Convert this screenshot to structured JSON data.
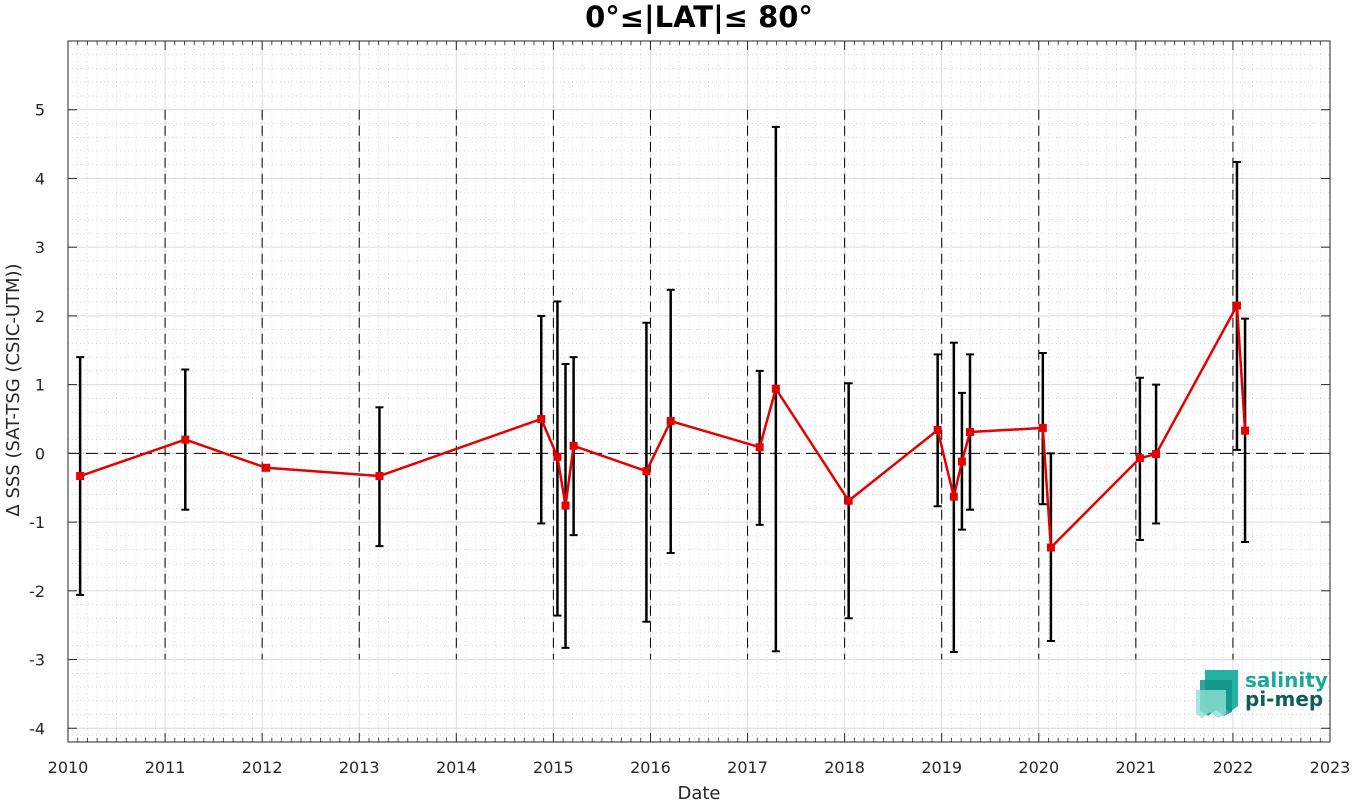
{
  "chart_data": {
    "type": "line",
    "title": "0°≤|LAT|≤ 80°",
    "xlabel": "Date",
    "ylabel": "Δ SSS (SAT-TSG (CSIC-UTM))",
    "xlim": [
      2010,
      2023
    ],
    "ylim": [
      -4.2,
      6
    ],
    "x_ticks": [
      "2010",
      "2011",
      "2012",
      "2013",
      "2014",
      "2015",
      "2016",
      "2017",
      "2018",
      "2019",
      "2020",
      "2021",
      "2022",
      "2023"
    ],
    "y_ticks": [
      "5",
      "4",
      "3",
      "2",
      "1",
      "0",
      "-1",
      "-2",
      "-3",
      "-4"
    ],
    "grid": "on (major and minor dotted)",
    "year_separators": [
      2011,
      2012,
      2013,
      2014,
      2015,
      2016,
      2017,
      2018,
      2019,
      2020,
      2021,
      2022
    ],
    "zero_line": 0,
    "series": [
      {
        "color": "#e60000",
        "marker": "square",
        "points": [
          {
            "date": "2010-02",
            "value": -0.33,
            "low": -2.06,
            "high": 1.4
          },
          {
            "date": "2011-03",
            "value": 0.2,
            "low": -0.82,
            "high": 1.22
          },
          {
            "date": "2012-01",
            "value": -0.21,
            "low": null,
            "high": null
          },
          {
            "date": "2013-03",
            "value": -0.33,
            "low": -1.35,
            "high": 0.67
          },
          {
            "date": "2014-11",
            "value": 0.5,
            "low": -1.02,
            "high": 2.0
          },
          {
            "date": "2015-01",
            "value": -0.05,
            "low": -2.36,
            "high": 2.21
          },
          {
            "date": "2015-02",
            "value": -0.76,
            "low": -2.83,
            "high": 1.3
          },
          {
            "date": "2015-03",
            "value": 0.11,
            "low": -1.19,
            "high": 1.4
          },
          {
            "date": "2015-12",
            "value": -0.26,
            "low": -2.45,
            "high": 1.9
          },
          {
            "date": "2016-03",
            "value": 0.47,
            "low": -1.45,
            "high": 2.38
          },
          {
            "date": "2017-02",
            "value": 0.09,
            "low": -1.04,
            "high": 1.2
          },
          {
            "date": "2017-04",
            "value": 0.94,
            "low": -2.88,
            "high": 4.75
          },
          {
            "date": "2018-01",
            "value": -0.69,
            "low": -2.4,
            "high": 1.02
          },
          {
            "date": "2018-12",
            "value": 0.34,
            "low": -0.77,
            "high": 1.44
          },
          {
            "date": "2019-02",
            "value": -0.63,
            "low": -2.89,
            "high": 1.61
          },
          {
            "date": "2019-03",
            "value": -0.12,
            "low": -1.11,
            "high": 0.88
          },
          {
            "date": "2019-04",
            "value": 0.31,
            "low": -0.82,
            "high": 1.44
          },
          {
            "date": "2020-01",
            "value": 0.37,
            "low": -0.74,
            "high": 1.46
          },
          {
            "date": "2020-02",
            "value": -1.37,
            "low": -2.73,
            "high": 0.0
          },
          {
            "date": "2021-01",
            "value": -0.07,
            "low": -1.26,
            "high": 1.1
          },
          {
            "date": "2021-03",
            "value": -0.01,
            "low": -1.02,
            "high": 1.0
          },
          {
            "date": "2022-01",
            "value": 2.15,
            "low": 0.05,
            "high": 4.24
          },
          {
            "date": "2022-02",
            "value": 0.33,
            "low": -1.29,
            "high": 1.96
          }
        ]
      }
    ]
  },
  "logo": {
    "line1": "salinity",
    "line2": "pi-mep",
    "color_top": "#1aa89a",
    "color_bottom": "#0f5f57"
  }
}
